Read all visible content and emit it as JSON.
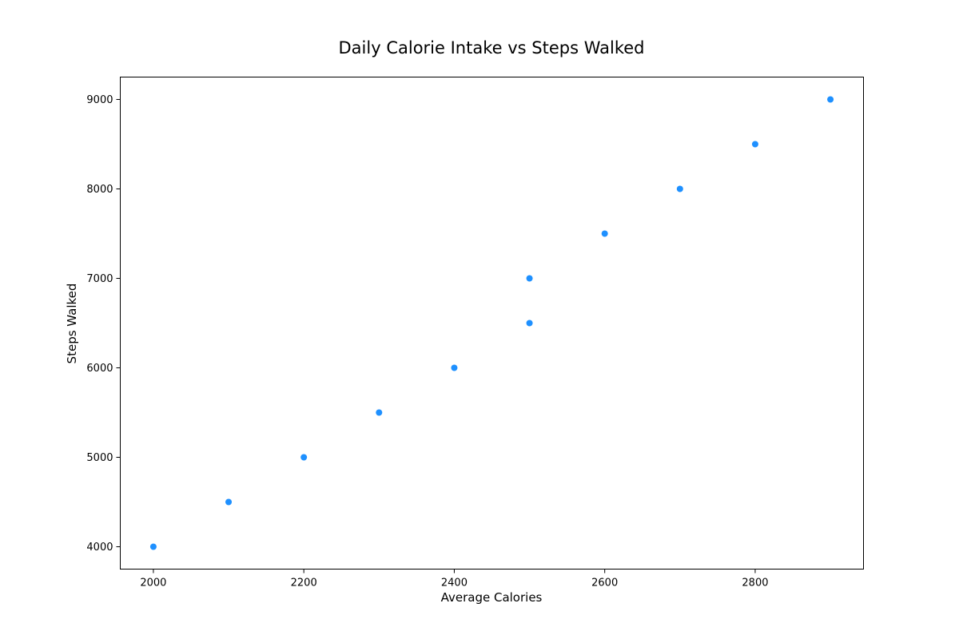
{
  "chart_data": {
    "type": "scatter",
    "title": "Daily Calorie Intake vs Steps Walked",
    "xlabel": "Average Calories",
    "ylabel": "Steps Walked",
    "x": [
      2000,
      2100,
      2200,
      2300,
      2400,
      2500,
      2500,
      2600,
      2700,
      2800,
      2900
    ],
    "y": [
      4000,
      4500,
      5000,
      5500,
      6000,
      6500,
      7000,
      7500,
      8000,
      8500,
      9000
    ],
    "xlim": [
      1956,
      2944
    ],
    "ylim": [
      3750,
      9250
    ],
    "xticks": [
      2000,
      2200,
      2400,
      2600,
      2800
    ],
    "yticks": [
      4000,
      5000,
      6000,
      7000,
      8000,
      9000
    ],
    "marker_color": "#1e90ff",
    "grid": false,
    "legend": "none"
  }
}
